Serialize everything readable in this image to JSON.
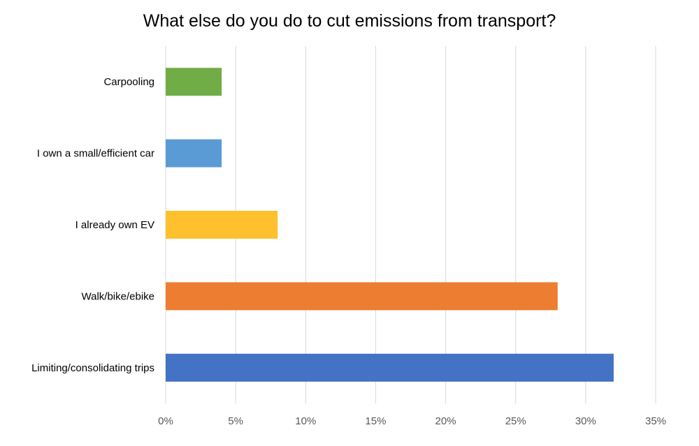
{
  "chart_data": {
    "type": "bar",
    "orientation": "horizontal",
    "title": "What else do you do to cut emissions from transport?",
    "xlabel": "",
    "ylabel": "",
    "categories": [
      "Carpooling",
      "I own a small/efficient car",
      "I already own EV",
      "Walk/bike/ebike",
      "Limiting/consolidating trips"
    ],
    "values": [
      4,
      4,
      8,
      28,
      32
    ],
    "unit": "%",
    "bar_colors": [
      "#70ad47",
      "#5b9bd5",
      "#ffc02e",
      "#ed7d31",
      "#4472c4"
    ],
    "xlim": [
      0,
      35
    ],
    "xticks": [
      0,
      5,
      10,
      15,
      20,
      25,
      30,
      35
    ],
    "xtick_labels": [
      "0%",
      "5%",
      "10%",
      "15%",
      "20%",
      "25%",
      "30%",
      "35%"
    ],
    "grid": "vertical",
    "legend": "none"
  }
}
